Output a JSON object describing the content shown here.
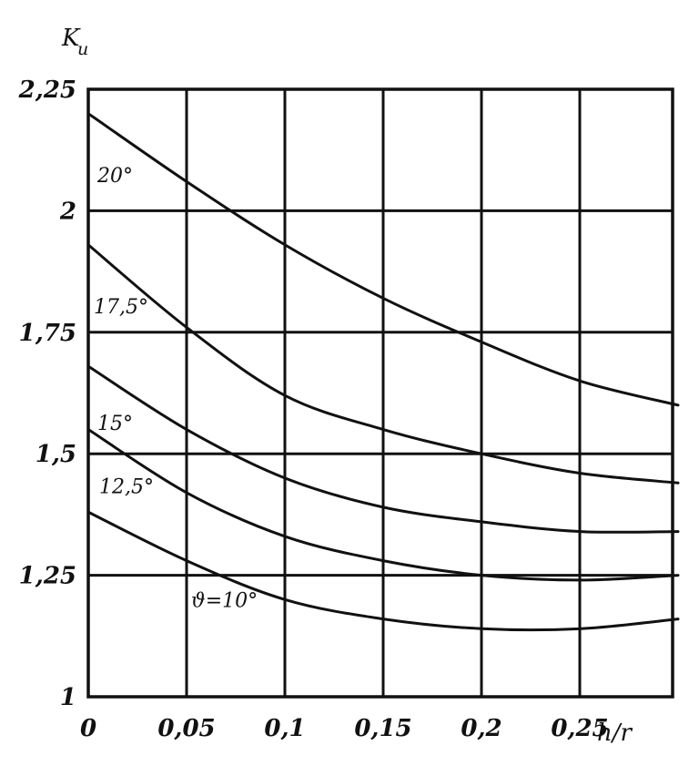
{
  "chart_data": {
    "type": "line",
    "ylabel": "K",
    "ylabel_sub": "u",
    "xlabel": "h/r",
    "xlim": [
      0,
      0.3
    ],
    "ylim": [
      1,
      2.25
    ],
    "x_ticks": [
      {
        "value": 0,
        "label": "0"
      },
      {
        "value": 0.05,
        "label": "0,05"
      },
      {
        "value": 0.1,
        "label": "0,1"
      },
      {
        "value": 0.15,
        "label": "0,15"
      },
      {
        "value": 0.2,
        "label": "0,2"
      },
      {
        "value": 0.25,
        "label": "0,25"
      }
    ],
    "y_ticks": [
      {
        "value": 1,
        "label": "1"
      },
      {
        "value": 1.25,
        "label": "1,25"
      },
      {
        "value": 1.5,
        "label": "1,5"
      },
      {
        "value": 1.75,
        "label": "1,75"
      },
      {
        "value": 2,
        "label": "2"
      },
      {
        "value": 2.25,
        "label": "2,25"
      }
    ],
    "grid": true,
    "series": [
      {
        "name": "20°",
        "label_at": [
          0.0,
          2.07
        ],
        "x": [
          0,
          0.05,
          0.1,
          0.15,
          0.2,
          0.25,
          0.3
        ],
        "values": [
          2.2,
          2.06,
          1.93,
          1.82,
          1.73,
          1.65,
          1.6
        ]
      },
      {
        "name": "17,5°",
        "label_at": [
          0.0,
          1.8
        ],
        "x": [
          0,
          0.05,
          0.1,
          0.15,
          0.2,
          0.25,
          0.3
        ],
        "values": [
          1.93,
          1.76,
          1.62,
          1.55,
          1.5,
          1.46,
          1.44
        ]
      },
      {
        "name": "15°",
        "label_at": [
          0.0,
          1.56
        ],
        "x": [
          0,
          0.05,
          0.1,
          0.15,
          0.2,
          0.25,
          0.3
        ],
        "values": [
          1.68,
          1.55,
          1.45,
          1.39,
          1.36,
          1.34,
          1.34
        ]
      },
      {
        "name": "12,5°",
        "label_at": [
          0.0,
          1.43
        ],
        "x": [
          0,
          0.05,
          0.1,
          0.15,
          0.2,
          0.25,
          0.3
        ],
        "values": [
          1.55,
          1.42,
          1.33,
          1.28,
          1.25,
          1.24,
          1.25
        ]
      },
      {
        "name": "ϑ=10°",
        "label_at": [
          0.05,
          1.2
        ],
        "x": [
          0,
          0.05,
          0.1,
          0.15,
          0.2,
          0.25,
          0.3
        ],
        "values": [
          1.38,
          1.28,
          1.2,
          1.16,
          1.14,
          1.14,
          1.16
        ]
      }
    ]
  }
}
